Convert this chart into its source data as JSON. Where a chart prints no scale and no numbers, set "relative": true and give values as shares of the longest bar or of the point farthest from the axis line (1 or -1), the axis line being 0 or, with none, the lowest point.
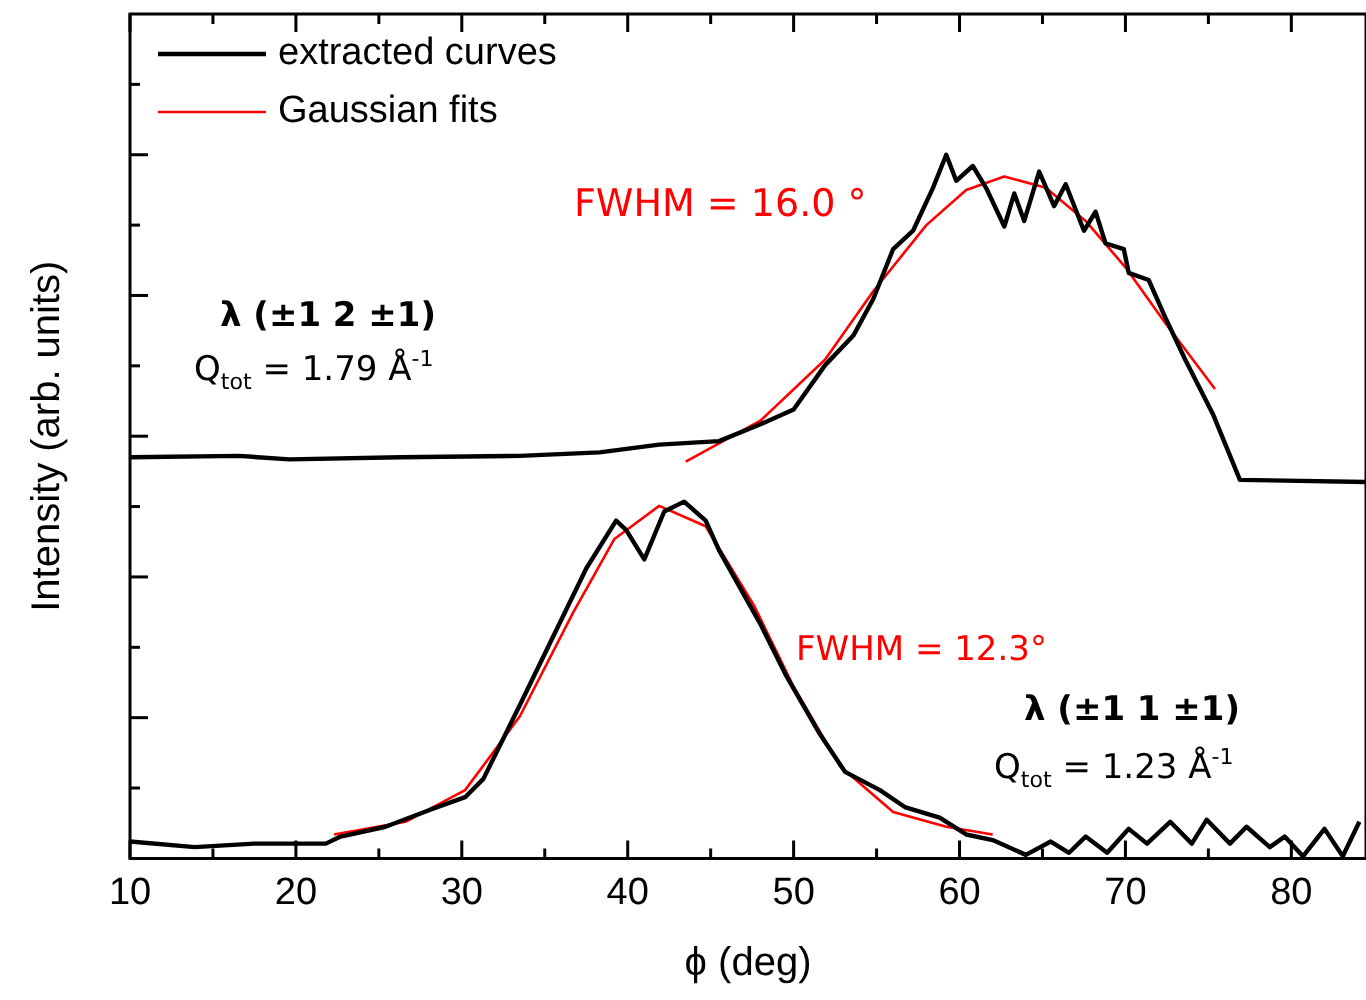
{
  "chart_data": {
    "type": "line",
    "relative": true,
    "xlabel": "ϕ (deg)",
    "ylabel": "Intensity (arb. units)",
    "xlim": [
      10,
      84.5
    ],
    "xticks": [
      10,
      {
        "value": 15,
        "label": null
      },
      20,
      {
        "value": 25,
        "label": null
      },
      30,
      {
        "value": 35,
        "label": null
      },
      40,
      {
        "value": 45,
        "label": null
      },
      50,
      {
        "value": 55,
        "label": null
      },
      60,
      {
        "value": 65,
        "label": null
      },
      70,
      {
        "value": 75,
        "label": null
      },
      80
    ],
    "legend": "top left",
    "grid": false,
    "marker": "none",
    "line_style": "solid",
    "annotations": [
      "FWHM = 16.0 °",
      "FWHM = 12.3°",
      "λ (±1 2 ±1)",
      "Q$_{tot}$ = 1.79 Å$^{-1}$",
      "λ (±1 1 ±1)",
      "Q$_{tot}$ = 1.23 Å$^{-1}$"
    ],
    "series": [
      {
        "name": "extracted curves",
        "color": "#000000",
        "x": [
          10,
          16.6,
          19.6,
          26.3,
          33.5,
          38.3,
          41.9,
          45.5,
          48.0,
          50.0,
          51.9,
          53.6,
          54.8,
          56.0,
          57.2,
          58.4,
          59.2,
          59.8,
          60.8,
          61.6,
          62.7,
          63.3,
          63.9,
          64.8,
          65.7,
          66.4,
          67.5,
          68.2,
          68.8,
          69.9,
          70.2,
          71.4,
          72.4,
          73.6,
          75.3,
          76.9,
          84.5
        ],
        "values": [
          0.57,
          0.572,
          0.567,
          0.57,
          0.572,
          0.577,
          0.588,
          0.593,
          0.617,
          0.638,
          0.701,
          0.743,
          0.795,
          0.866,
          0.892,
          0.953,
          1,
          0.963,
          0.984,
          0.953,
          0.898,
          0.945,
          0.906,
          0.976,
          0.927,
          0.958,
          0.892,
          0.919,
          0.874,
          0.866,
          0.832,
          0.822,
          0.769,
          0.709,
          0.63,
          0.538,
          0.535
        ]
      },
      {
        "name": "Gaussian fits",
        "color": "#ff0000",
        "x": [
          43.5,
          48.0,
          51.9,
          54.8,
          58.0,
          60.4,
          62.7,
          65.2,
          67.6,
          70.0,
          72.4,
          75.4
        ],
        "values": [
          0.564,
          0.622,
          0.709,
          0.806,
          0.9,
          0.95,
          0.969,
          0.953,
          0.906,
          0.84,
          0.761,
          0.667
        ]
      },
      {
        "color": "#000000",
        "x": [
          10,
          13.9,
          17.5,
          21.8,
          22.7,
          25.4,
          28.3,
          30.2,
          31.3,
          33.5,
          35.5,
          37.5,
          39.3,
          39.9,
          41.0,
          42.2,
          43.4,
          44.7,
          45.5,
          48.0,
          49.5,
          51.6,
          53.1,
          55.2,
          56.7,
          58.8,
          60.4,
          62.0,
          64.0,
          65.5,
          66.6,
          67.6,
          68.9,
          70.2,
          71.3,
          72.7,
          74.0,
          74.9,
          76.3,
          77.3,
          78.7,
          79.6,
          80.7,
          82.0,
          83.1,
          84.1
        ],
        "values": [
          0.024,
          0.016,
          0.021,
          0.021,
          0.031,
          0.045,
          0.071,
          0.087,
          0.113,
          0.218,
          0.315,
          0.412,
          0.48,
          0.467,
          0.425,
          0.493,
          0.507,
          0.48,
          0.438,
          0.333,
          0.262,
          0.176,
          0.123,
          0.097,
          0.073,
          0.058,
          0.034,
          0.026,
          0.005,
          0.024,
          0.008,
          0.031,
          0.008,
          0.042,
          0.021,
          0.052,
          0.021,
          0.055,
          0.021,
          0.045,
          0.016,
          0.031,
          0.003,
          0.042,
          0.003,
          0.052
        ]
      },
      {
        "color": "#ff0000",
        "x": [
          22.3,
          26.6,
          30.2,
          33.5,
          36.7,
          39.2,
          41.9,
          44.7,
          47.6,
          50.0,
          52.8,
          56.0,
          59.2,
          62.0
        ],
        "values": [
          0.034,
          0.052,
          0.097,
          0.202,
          0.349,
          0.454,
          0.501,
          0.472,
          0.36,
          0.244,
          0.131,
          0.066,
          0.045,
          0.034
        ]
      }
    ]
  }
}
